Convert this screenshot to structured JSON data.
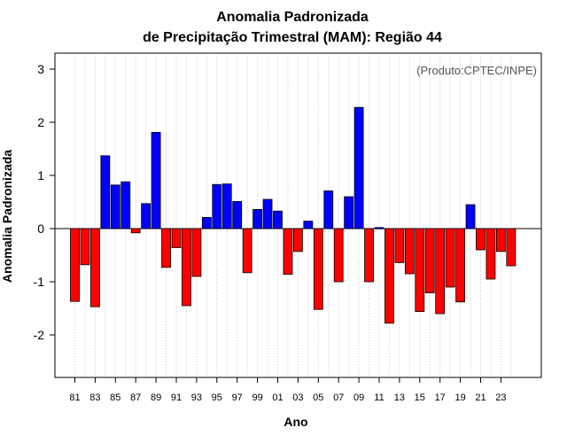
{
  "chart_data": {
    "type": "bar",
    "title": "Anomalia Padronizada",
    "subtitle": "de Precipitação Trimestral (MAM): Região 44",
    "xlabel": "Ano",
    "ylabel": "Anomalia Padronizada",
    "note": "(Produto:CPTEC/INPE)",
    "ylim": [
      -2.8,
      3.3
    ],
    "yticks": [
      -2,
      -1,
      0,
      1,
      2,
      3
    ],
    "xtick_labels": [
      "81",
      "83",
      "85",
      "87",
      "89",
      "91",
      "93",
      "95",
      "97",
      "99",
      "01",
      "03",
      "05",
      "07",
      "09",
      "11",
      "13",
      "15",
      "17",
      "19",
      "21",
      "23"
    ],
    "grid": true,
    "colors": {
      "positive": "#0000ff",
      "negative": "#ff0000"
    },
    "categories": [
      "1981",
      "1982",
      "1983",
      "1984",
      "1985",
      "1986",
      "1987",
      "1988",
      "1989",
      "1990",
      "1991",
      "1992",
      "1993",
      "1994",
      "1995",
      "1996",
      "1997",
      "1998",
      "1999",
      "2000",
      "2001",
      "2002",
      "2003",
      "2004",
      "2005",
      "2006",
      "2007",
      "2008",
      "2009",
      "2010",
      "2011",
      "2012",
      "2013",
      "2014",
      "2015",
      "2016",
      "2017",
      "2018",
      "2019",
      "2020",
      "2021",
      "2022",
      "2023",
      "2024"
    ],
    "values": [
      -1.37,
      -0.68,
      -1.47,
      1.37,
      0.82,
      0.88,
      -0.08,
      0.47,
      1.81,
      -0.73,
      -0.36,
      -1.45,
      -0.9,
      0.21,
      0.83,
      0.84,
      0.51,
      -0.83,
      0.36,
      0.55,
      0.33,
      -0.86,
      -0.43,
      0.14,
      -1.52,
      0.71,
      -1.0,
      0.6,
      2.28,
      -1.0,
      0.02,
      -1.78,
      -0.64,
      -0.85,
      -1.56,
      -1.21,
      -1.6,
      -1.1,
      -1.38,
      0.45,
      -0.4,
      -0.95,
      -0.43,
      -0.7
    ]
  }
}
